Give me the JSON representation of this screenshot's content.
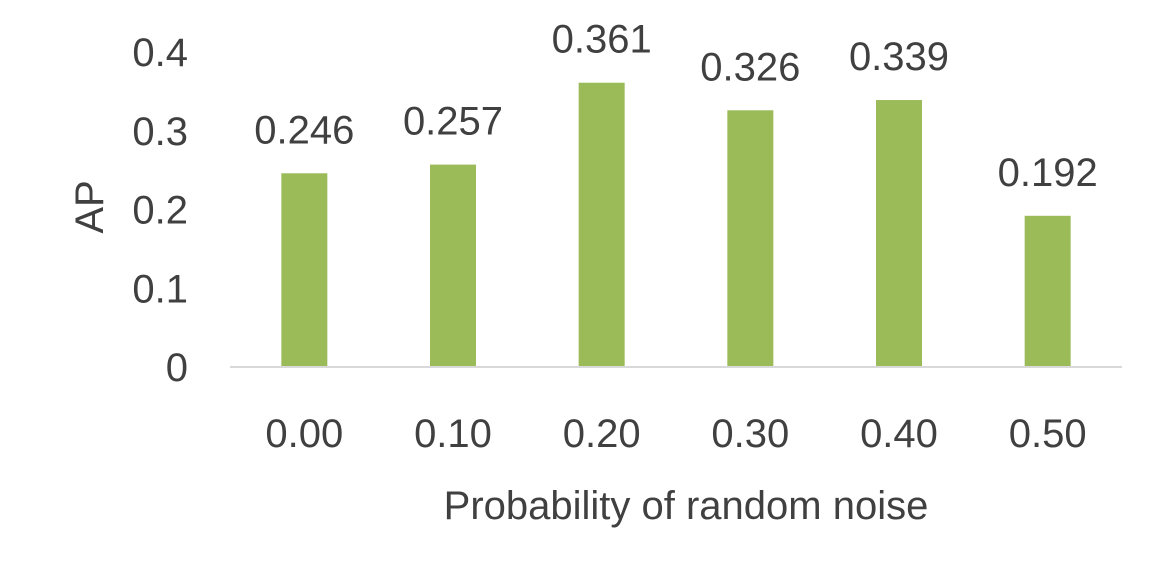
{
  "chart_data": {
    "type": "bar",
    "categories": [
      "0.00",
      "0.10",
      "0.20",
      "0.30",
      "0.40",
      "0.50"
    ],
    "values": [
      0.246,
      0.257,
      0.361,
      0.326,
      0.339,
      0.192
    ],
    "data_labels": [
      "0.246",
      "0.257",
      "0.361",
      "0.326",
      "0.339",
      "0.192"
    ],
    "yticks": [
      "0",
      "0.1",
      "0.2",
      "0.3",
      "0.4"
    ],
    "ytick_values": [
      0,
      0.1,
      0.2,
      0.3,
      0.4
    ],
    "ylim": [
      0,
      0.4
    ],
    "xlabel": "Probability of random noise",
    "ylabel": "AP",
    "grid": false,
    "legend": "none",
    "bar_color": "#9BBB59",
    "axis_color": "#D9D9D9",
    "text_color": "#404040"
  }
}
